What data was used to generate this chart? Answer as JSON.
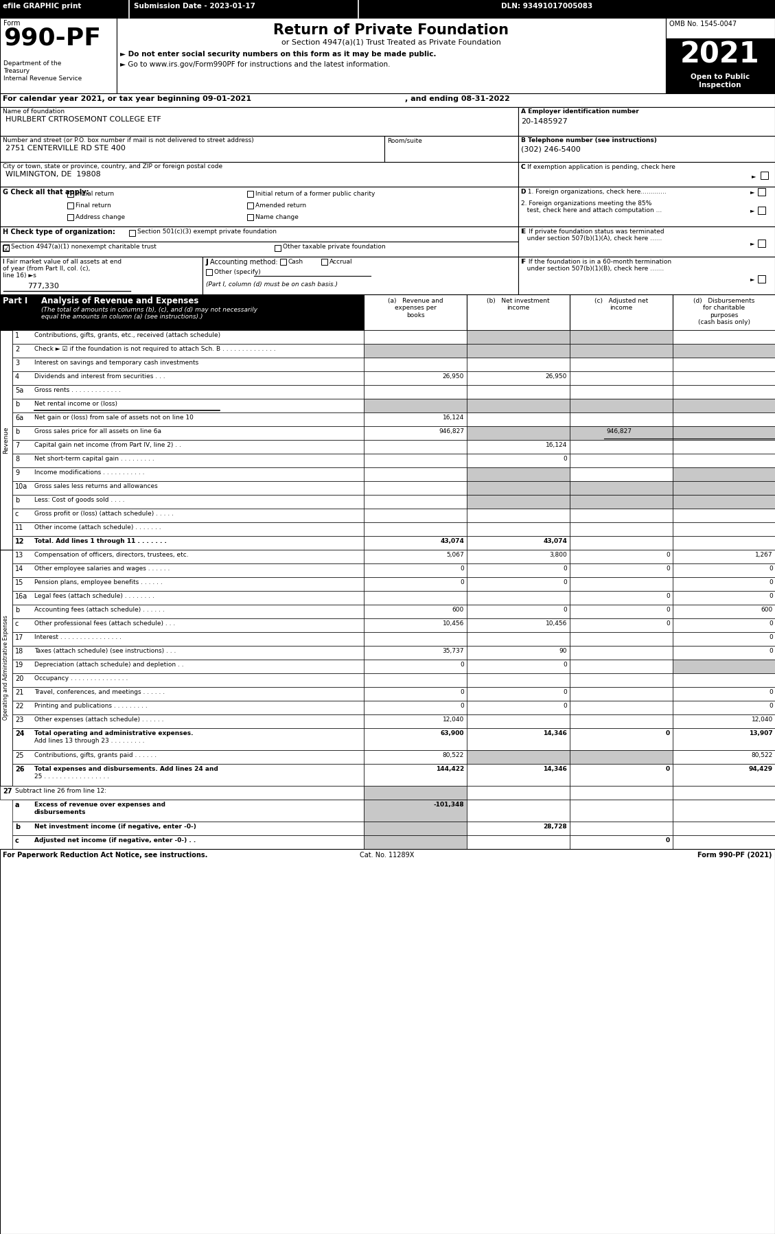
{
  "efile_label": "efile GRAPHIC print",
  "submission_date": "Submission Date - 2023-01-17",
  "dln": "DLN: 93491017005083",
  "form_number": "990-PF",
  "form_label": "Form",
  "dept_label": "Department of the\nTreasury\nInternal Revenue Service",
  "title": "Return of Private Foundation",
  "subtitle": "or Section 4947(a)(1) Trust Treated as Private Foundation",
  "bullet1": "► Do not enter social security numbers on this form as it may be made public.",
  "bullet2": "► Go to www.irs.gov/Form990PF for instructions and the latest information.",
  "bullet2_url": "www.irs.gov/Form990PF",
  "year": "2021",
  "open_to_public": "Open to Public\nInspection",
  "omb": "OMB No. 1545-0047",
  "cal_year_line": "For calendar year 2021, or tax year beginning 09-01-2021",
  "ending_line": ", and ending 08-31-2022",
  "name_label": "Name of foundation",
  "name_value": "HURLBERT CRTROSEMONT COLLEGE ETF",
  "ein_label": "A Employer identification number",
  "ein_value": "20-1485927",
  "address_label": "Number and street (or P.O. box number if mail is not delivered to street address)",
  "address_value": "2751 CENTERVILLE RD STE 400",
  "room_label": "Room/suite",
  "phone_label": "B Telephone number (see instructions)",
  "phone_value": "(302) 246-5400",
  "city_label": "City or town, state or province, country, and ZIP or foreign postal code",
  "city_value": "WILMINGTON, DE  19808",
  "exempt_label": "C If exemption application is pending, check here",
  "g_label": "G Check all that apply:",
  "g_options": [
    "Initial return",
    "Initial return of a former public charity",
    "Final return",
    "Amended return",
    "Address change",
    "Name change"
  ],
  "d1_label": "D 1. Foreign organizations, check here.............",
  "d2_label": "2. Foreign organizations meeting the 85%\n   test, check here and attach computation ...",
  "e_label": "E  If private foundation status was terminated\n   under section 507(b)(1)(A), check here ......",
  "h_label": "H Check type of organization:",
  "h_opt1": "Section 501(c)(3) exempt private foundation",
  "h_opt2": "Section 4947(a)(1) nonexempt charitable trust",
  "h_opt3": "Other taxable private foundation",
  "i_label1": "I Fair market value of all assets at end",
  "i_label2": "of year (from Part II, col. (c),",
  "i_label3": "line 16) ►s",
  "i_value": "777,330",
  "j_label": "J Accounting method:",
  "j_cash": "Cash",
  "j_accrual": "Accrual",
  "j_other": "Other (specify)",
  "j_note": "(Part I, column (d) must be on cash basis.)",
  "f_label1": "F  If the foundation is in a 60-month termination",
  "f_label2": "   under section 507(b)(1)(B), check here .......",
  "part1_label": "Part I",
  "part1_title": "Analysis of Revenue and Expenses",
  "part1_italic": "(The total of amounts in columns (b), (c), and (d) may not necessarily equal the amounts in column (a) (see instructions).)",
  "col_a": "(a)   Revenue and\nexpenses per\nbooks",
  "col_b": "(b)   Net investment\nincome",
  "col_c": "(c)   Adjusted net\nincome",
  "col_d": "(d)   Disbursements\nfor charitable\npurposes\n(cash basis only)",
  "revenue_rows": [
    {
      "num": "1",
      "label": "Contributions, gifts, grants, etc., received (attach schedule)",
      "a": "",
      "b": "",
      "c": "",
      "d": "",
      "sh_b": true,
      "sh_c": true,
      "sh_d": false,
      "two_line": false
    },
    {
      "num": "2",
      "label": "Check ► ☑ if the foundation is not required to attach Sch. B . . . . . . . . . . . . . .",
      "a": "",
      "b": "",
      "c": "",
      "d": "",
      "sh_a": true,
      "sh_b": true,
      "sh_c": true,
      "sh_d": true,
      "two_line": false
    },
    {
      "num": "3",
      "label": "Interest on savings and temporary cash investments",
      "a": "",
      "b": "",
      "c": "",
      "d": "",
      "sh_b": false,
      "sh_c": false,
      "sh_d": false,
      "two_line": false
    },
    {
      "num": "4",
      "label": "Dividends and interest from securities . . .",
      "a": "26,950",
      "b": "26,950",
      "c": "",
      "d": "",
      "sh_b": false,
      "sh_c": false,
      "sh_d": false,
      "two_line": false
    },
    {
      "num": "5a",
      "label": "Gross rents . . . . . . . . . . . . .",
      "a": "",
      "b": "",
      "c": "",
      "d": "",
      "sh_b": false,
      "sh_c": false,
      "sh_d": false,
      "two_line": false
    },
    {
      "num": "b",
      "label": "Net rental income or (loss)",
      "a": "",
      "b": "",
      "c": "",
      "d": "",
      "sh_a": true,
      "sh_b": true,
      "sh_c": true,
      "sh_d": true,
      "two_line": false,
      "underline": true
    },
    {
      "num": "6a",
      "label": "Net gain or (loss) from sale of assets not on line 10",
      "a": "16,124",
      "b": "",
      "c": "",
      "d": "",
      "sh_b": false,
      "sh_c": false,
      "sh_d": false,
      "two_line": false
    },
    {
      "num": "b",
      "label": "Gross sales price for all assets on line 6a",
      "a": "946,827",
      "b": "",
      "c": "",
      "d": "",
      "sh_b": true,
      "sh_c": true,
      "sh_d": true,
      "two_line": false,
      "inline_val": true
    },
    {
      "num": "7",
      "label": "Capital gain net income (from Part IV, line 2) . .",
      "a": "",
      "b": "16,124",
      "c": "",
      "d": "",
      "sh_b": false,
      "sh_c": false,
      "sh_d": false,
      "two_line": false
    },
    {
      "num": "8",
      "label": "Net short-term capital gain . . . . . . . . .",
      "a": "",
      "b": "0",
      "c": "",
      "d": "",
      "sh_b": false,
      "sh_c": false,
      "sh_d": false,
      "two_line": false
    },
    {
      "num": "9",
      "label": "Income modifications . . . . . . . . . . .",
      "a": "",
      "b": "",
      "c": "",
      "d": "",
      "sh_b": true,
      "sh_c": false,
      "sh_d": true,
      "two_line": false
    },
    {
      "num": "10a",
      "label": "Gross sales less returns and allowances",
      "a": "",
      "b": "",
      "c": "",
      "d": "",
      "sh_b": true,
      "sh_c": true,
      "sh_d": true,
      "two_line": false
    },
    {
      "num": "b",
      "label": "Less: Cost of goods sold . . . .",
      "a": "",
      "b": "",
      "c": "",
      "d": "",
      "sh_b": true,
      "sh_c": true,
      "sh_d": true,
      "two_line": false
    },
    {
      "num": "c",
      "label": "Gross profit or (loss) (attach schedule) . . . . .",
      "a": "",
      "b": "",
      "c": "",
      "d": "",
      "sh_b": false,
      "sh_c": false,
      "sh_d": false,
      "two_line": false
    },
    {
      "num": "11",
      "label": "Other income (attach schedule) . . . . . . .",
      "a": "",
      "b": "",
      "c": "",
      "d": "",
      "sh_b": false,
      "sh_c": false,
      "sh_d": false,
      "two_line": false
    },
    {
      "num": "12",
      "label": "Total. Add lines 1 through 11 . . . . . . .",
      "a": "43,074",
      "b": "43,074",
      "c": "",
      "d": "",
      "sh_b": false,
      "sh_c": false,
      "sh_d": false,
      "two_line": false,
      "bold": true
    }
  ],
  "expense_rows": [
    {
      "num": "13",
      "label": "Compensation of officers, directors, trustees, etc.",
      "a": "5,067",
      "b": "3,800",
      "c": "0",
      "d": "1,267",
      "sh_d": false
    },
    {
      "num": "14",
      "label": "Other employee salaries and wages . . . . . .",
      "a": "0",
      "b": "0",
      "c": "0",
      "d": "0"
    },
    {
      "num": "15",
      "label": "Pension plans, employee benefits . . . . . .",
      "a": "0",
      "b": "0",
      "c": "",
      "d": "0"
    },
    {
      "num": "16a",
      "label": "Legal fees (attach schedule) . . . . . . . .",
      "a": "",
      "b": "",
      "c": "0",
      "d": "0"
    },
    {
      "num": "b",
      "label": "Accounting fees (attach schedule) . . . . . .",
      "a": "600",
      "b": "0",
      "c": "0",
      "d": "600"
    },
    {
      "num": "c",
      "label": "Other professional fees (attach schedule) . . .",
      "a": "10,456",
      "b": "10,456",
      "c": "0",
      "d": "0"
    },
    {
      "num": "17",
      "label": "Interest . . . . . . . . . . . . . . . .",
      "a": "",
      "b": "",
      "c": "",
      "d": "0"
    },
    {
      "num": "18",
      "label": "Taxes (attach schedule) (see instructions) . . .",
      "a": "35,737",
      "b": "90",
      "c": "",
      "d": "0"
    },
    {
      "num": "19",
      "label": "Depreciation (attach schedule) and depletion . .",
      "a": "0",
      "b": "0",
      "c": "",
      "d": "",
      "sh_d": true
    },
    {
      "num": "20",
      "label": "Occupancy . . . . . . . . . . . . . . .",
      "a": "",
      "b": "",
      "c": "",
      "d": ""
    },
    {
      "num": "21",
      "label": "Travel, conferences, and meetings . . . . . .",
      "a": "0",
      "b": "0",
      "c": "",
      "d": "0"
    },
    {
      "num": "22",
      "label": "Printing and publications . . . . . . . . .",
      "a": "0",
      "b": "0",
      "c": "",
      "d": "0"
    },
    {
      "num": "23",
      "label": "Other expenses (attach schedule) . . . . . .",
      "a": "12,040",
      "b": "",
      "c": "",
      "d": "12,040"
    },
    {
      "num": "24",
      "label": "Total operating and administrative expenses.",
      "label2": "Add lines 13 through 23 . . . . . . . . .",
      "a": "63,900",
      "b": "14,346",
      "c": "0",
      "d": "13,907",
      "bold": true,
      "two_line": true
    },
    {
      "num": "25",
      "label": "Contributions, gifts, grants paid . . . . . .",
      "a": "80,522",
      "b": "",
      "c": "",
      "d": "80,522",
      "sh_b": true,
      "sh_c": true
    },
    {
      "num": "26",
      "label": "Total expenses and disbursements. Add lines 24 and",
      "label2": "25 . . . . . . . . . . . . . . . . .",
      "a": "144,422",
      "b": "14,346",
      "c": "0",
      "d": "94,429",
      "bold": true,
      "two_line": true
    }
  ],
  "bottom_rows": [
    {
      "num": "27",
      "label": "Subtract line 26 from line 12:",
      "bold": false,
      "header": true
    },
    {
      "num": "a",
      "label": "Excess of revenue over expenses and",
      "label2": "disbursements",
      "a": "-101,348",
      "b": "",
      "c": "",
      "d": "",
      "bold": true,
      "sh_a": true,
      "two_line": true
    },
    {
      "num": "b",
      "label": "Net investment income (if negative, enter -0-)",
      "a": "",
      "b": "28,728",
      "c": "",
      "d": "",
      "bold": true,
      "sh_a": true
    },
    {
      "num": "c",
      "label": "Adjusted net income (if negative, enter -0-) . .",
      "a": "",
      "b": "",
      "c": "0",
      "d": "",
      "bold": true,
      "sh_a": true
    }
  ],
  "footer_left": "For Paperwork Reduction Act Notice, see instructions.",
  "footer_cat": "Cat. No. 11289X",
  "footer_right": "Form 990-PF (2021)",
  "side_revenue": "Revenue",
  "side_expenses": "Operating and Administrative Expenses",
  "shaded": "#c8c8c8"
}
